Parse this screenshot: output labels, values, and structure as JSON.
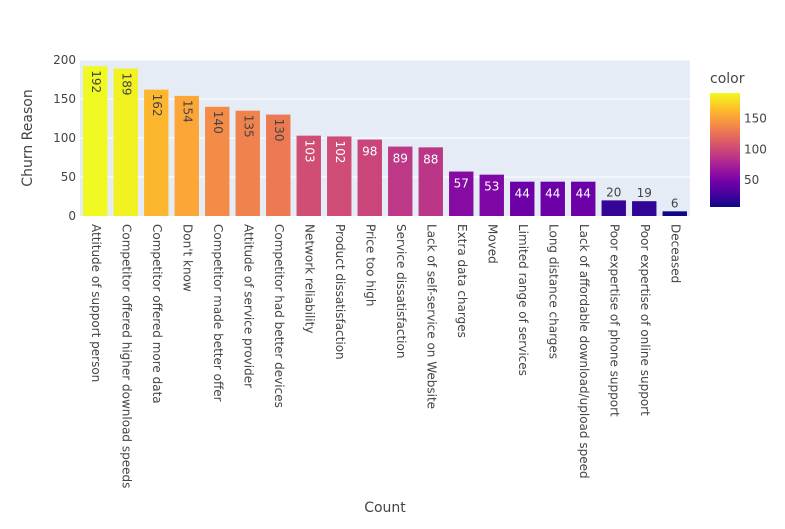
{
  "chart_data": {
    "type": "bar",
    "xlabel": "Count",
    "ylabel": "Churn Reason",
    "ylim": [
      0,
      200
    ],
    "yticks": [
      0,
      50,
      100,
      150,
      200
    ],
    "categories": [
      "Attitude of support person",
      "Competitor offered higher download speeds",
      "Competitor offered more data",
      "Don't know",
      "Competitor made better offer",
      "Attitude of service provider",
      "Competitor had better devices",
      "Network reliability",
      "Product dissatisfaction",
      "Price too high",
      "Service dissatisfaction",
      "Lack of self-service on Website",
      "Extra data charges",
      "Moved",
      "Limited range of services",
      "Long distance charges",
      "Lack of affordable download/upload speed",
      "Poor expertise of phone support",
      "Poor expertise of online support",
      "Deceased"
    ],
    "values": [
      192,
      189,
      162,
      154,
      140,
      135,
      130,
      103,
      102,
      98,
      89,
      88,
      57,
      53,
      44,
      44,
      44,
      20,
      19,
      6
    ],
    "colorbar": {
      "title": "color",
      "ticks": [
        50,
        100,
        150
      ],
      "range": [
        6,
        192
      ],
      "colorscale": [
        "#0d0887",
        "#46039f",
        "#7201a8",
        "#9c179e",
        "#bd3786",
        "#d8576b",
        "#ed7953",
        "#fb9f3a",
        "#fdca26",
        "#f0f921"
      ]
    },
    "plot_bg": "#e5ecf6",
    "grid": true
  }
}
